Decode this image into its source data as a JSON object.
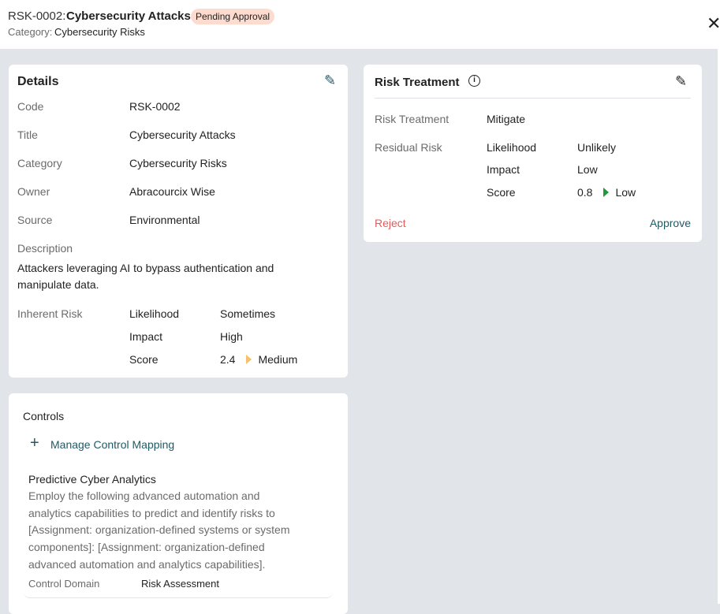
{
  "header": {
    "code": "RSK-0002:",
    "title": "Cybersecurity Attacks",
    "status": "Pending Approval",
    "category_label": "Category:",
    "category": "Cybersecurity Risks"
  },
  "details": {
    "heading": "Details",
    "rows": [
      {
        "label": "Code",
        "value": "RSK-0002"
      },
      {
        "label": "Title",
        "value": "Cybersecurity Attacks"
      },
      {
        "label": "Category",
        "value": "Cybersecurity Risks"
      },
      {
        "label": "Owner",
        "value": "Abracourcix Wise"
      },
      {
        "label": "Source",
        "value": "Environmental"
      }
    ],
    "description_label": "Description",
    "description_lines": [
      "Attackers leveraging AI to bypass authentication and",
      "manipulate data."
    ],
    "inherent": {
      "label": "Inherent Risk",
      "likelihood_label": "Likelihood",
      "likelihood": "Sometimes",
      "impact_label": "Impact",
      "impact": "High",
      "score_label": "Score",
      "score": "2.4",
      "level": "Medium",
      "level_color": "#f5c26b"
    }
  },
  "treatment": {
    "heading": "Risk Treatment",
    "treatment_label": "Risk Treatment",
    "treatment": "Mitigate",
    "residual": {
      "label": "Residual Risk",
      "likelihood_label": "Likelihood",
      "likelihood": "Unlikely",
      "impact_label": "Impact",
      "impact": "Low",
      "score_label": "Score",
      "score": "0.8",
      "level": "Low",
      "level_color": "#1e9a3a"
    },
    "reject": "Reject",
    "approve": "Approve"
  },
  "controls": {
    "heading": "Controls",
    "manage": "Manage Control Mapping",
    "item": {
      "title": "Predictive Cyber Analytics",
      "description_lines": [
        "Employ the following advanced automation and",
        "analytics capabilities to predict and identify risks to",
        "[Assignment: organization-defined systems or system",
        "components]: [Assignment: organization-defined",
        "advanced automation and analytics capabilities]."
      ],
      "domain_label": "Control Domain",
      "domain": "Risk Assessment"
    }
  }
}
